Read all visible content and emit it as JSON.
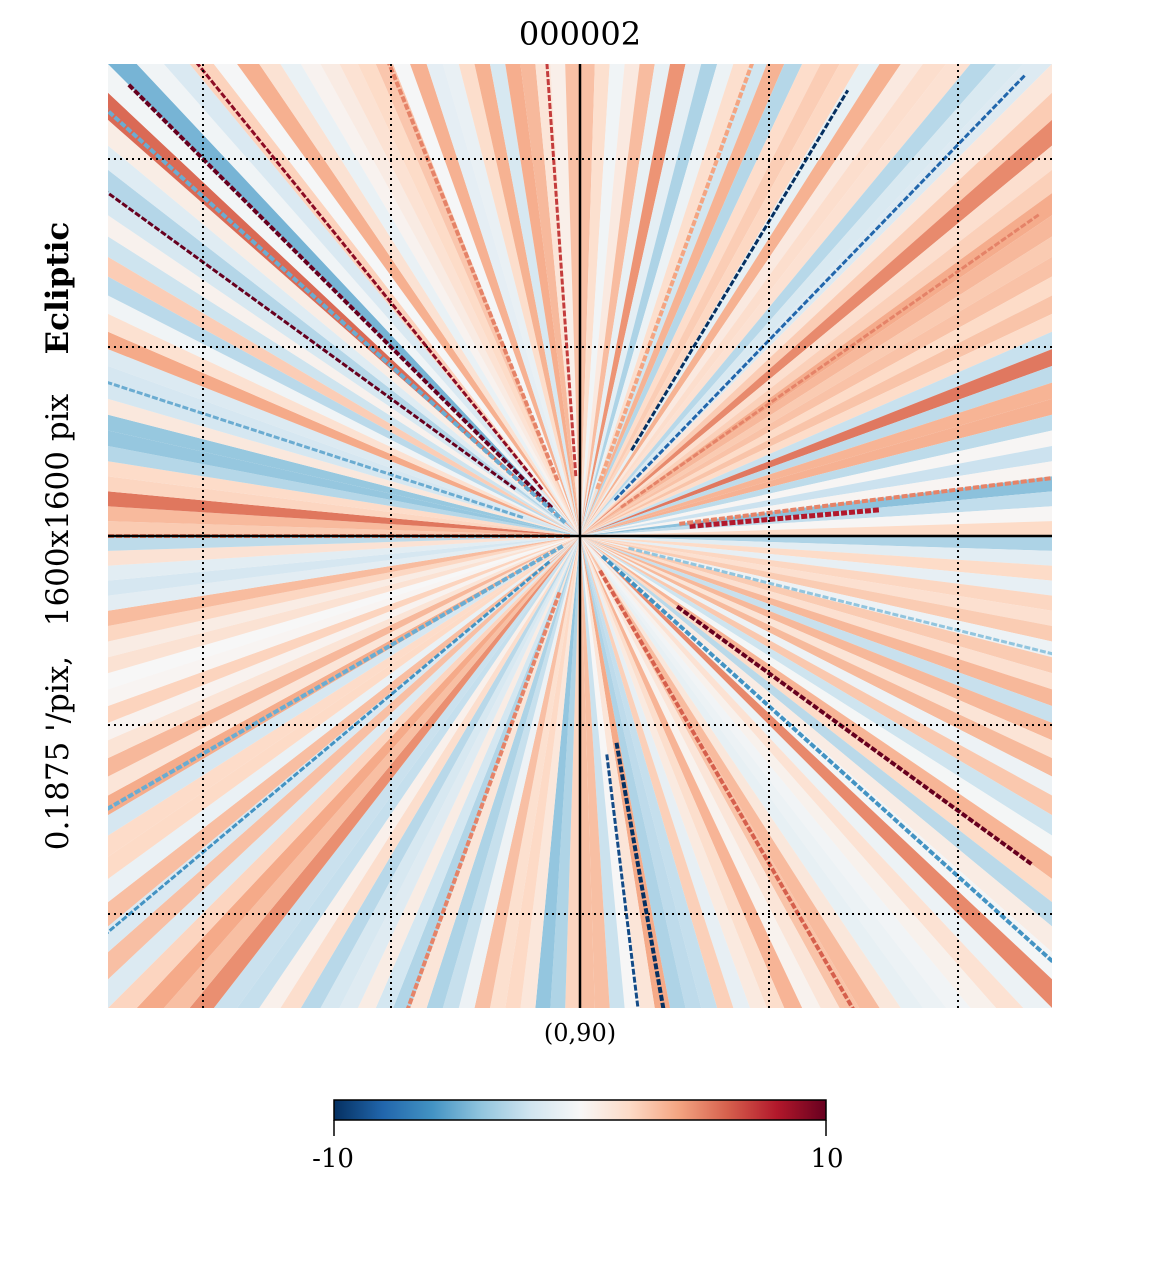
{
  "title": "000002",
  "ylabel": {
    "resolution": "0.1875 '/pix,",
    "size": "1600x1600 pix",
    "coord": "Ecliptic"
  },
  "center_label": "(0,90)",
  "colorbar": {
    "min_label": "-10",
    "max_label": "10",
    "cmap_stops": [
      "#053061",
      "#2166ac",
      "#4393c3",
      "#92c5de",
      "#d1e5f0",
      "#f7f7f7",
      "#fddbc7",
      "#f4a582",
      "#d6604d",
      "#b2182b",
      "#67001f"
    ]
  },
  "chart_data": {
    "type": "heatmap",
    "projection": "gnomonic",
    "title": "000002",
    "center": "(0,90)",
    "coordinate_system": "Ecliptic",
    "resolution_arcmin_per_pix": 0.1875,
    "xsize_pix": 1600,
    "ysize_pix": 1600,
    "vmin": -10,
    "vmax": 10,
    "colormap": "RdBu_r",
    "graticule": true,
    "pattern": "radial streaks of alternating positive and negative values converging on the north ecliptic pole",
    "notable_features": [
      {
        "direction": "upper-left diagonal",
        "sign": "positive",
        "peak": 10
      },
      {
        "direction": "lower-right diagonal",
        "sign": "positive",
        "peak": 10
      },
      {
        "direction": "lower center, slightly right of pole",
        "sign": "negative",
        "peak": -10
      },
      {
        "direction": "upper-right diagonal",
        "sign": "negative",
        "peak": -8
      },
      {
        "direction": "right, just above horizontal axis",
        "sign": "positive",
        "peak": 8
      }
    ]
  }
}
